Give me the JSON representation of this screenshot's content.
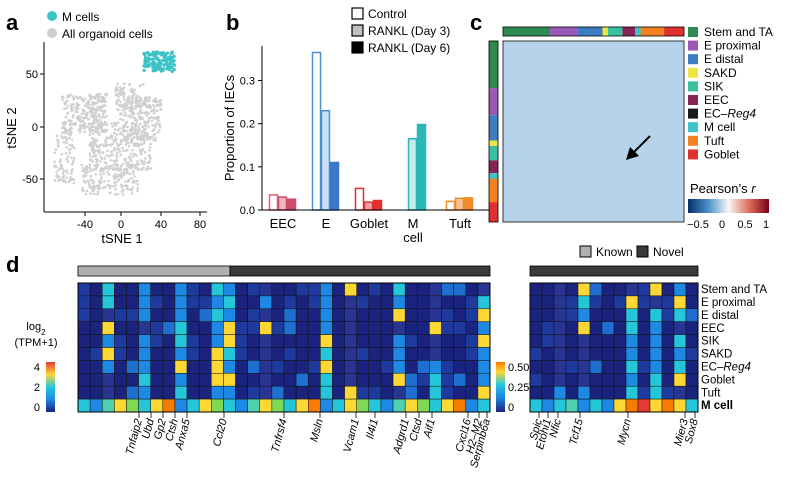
{
  "panels": {
    "a": {
      "letter": "a",
      "legend": [
        "M cells",
        "All organoid cells"
      ],
      "legend_colors": [
        "#3ec3c7",
        "#d0d0d0"
      ],
      "xlabel": "tSNE 1",
      "ylabel": "tSNE 2",
      "xticks": [
        "-40",
        "0",
        "40",
        "80"
      ],
      "yticks": [
        "50",
        "0",
        "-50"
      ]
    },
    "b": {
      "letter": "b",
      "legend": [
        "Control",
        "RANKL (Day 3)",
        "RANKL (Day 6)"
      ],
      "ylabel": "Proportion of IECs",
      "yticks": [
        "0.0",
        "0.1",
        "0.2",
        "0.3"
      ],
      "xticks": [
        "EEC",
        "E",
        "Goblet",
        "M\ncell",
        "Tuft"
      ]
    },
    "c": {
      "letter": "c",
      "legend": [
        "Stem and TA",
        "E proximal",
        "E distal",
        "SAKD",
        "SIK",
        "EEC",
        "EC–Reg4",
        "M cell",
        "Tuft",
        "Goblet"
      ],
      "legend_colors": [
        "#2e8b4f",
        "#9b59b6",
        "#3b7dc0",
        "#f0e442",
        "#38c0a0",
        "#8b2257",
        "#1a1a1a",
        "#3ec3c7",
        "#f08020",
        "#e03030"
      ],
      "colorbar_title": "Pearson’s r",
      "colorbar_ticks": [
        "−0.5",
        "0",
        "0.5",
        "1"
      ]
    },
    "d": {
      "letter": "d",
      "legend": [
        "Known",
        "Novel"
      ],
      "rows": [
        "Stem and TA",
        "E proximal",
        "E distal",
        "EEC",
        "SIK",
        "SAKD",
        "EC–Reg4",
        "Goblet",
        "Tuft",
        "M cell"
      ],
      "colorbar_left_title": "log₂\n(TPM+1)",
      "colorbar_left_ticks": [
        "4",
        "2",
        "0"
      ],
      "colorbar_right_ticks": [
        "0.50",
        "0.25",
        "0"
      ],
      "genes_left": [
        "Tnfaip2",
        "Ubd",
        "Gp2",
        "Ctsh",
        "Anxa5",
        "Ccl20",
        "Tnfrsf4",
        "Msln",
        "Vcam1",
        "Il4i1",
        "Adgrd1",
        "Ctsd",
        "Aif1",
        "Cxcl16",
        "H2–M2",
        "Serpinb6a"
      ],
      "genes_right": [
        "Spic",
        "Etohi1",
        "Nfic",
        "Tcf15",
        "Mycn",
        "Mier3",
        "Sox8"
      ]
    }
  },
  "chart_data": [
    {
      "type": "scatter",
      "title": "",
      "xlabel": "tSNE 1",
      "ylabel": "tSNE 2",
      "xlim": [
        -75,
        85
      ],
      "ylim": [
        -75,
        80
      ],
      "series": [
        {
          "name": "All organoid cells",
          "color": "#d0d0d0"
        },
        {
          "name": "M cells",
          "color": "#3ec3c7"
        }
      ]
    },
    {
      "type": "bar",
      "ylabel": "Proportion of IECs",
      "ylim": [
        0,
        0.38
      ],
      "categories": [
        "EEC",
        "E",
        "Goblet",
        "M cell",
        "Tuft"
      ],
      "series": [
        {
          "name": "Control",
          "values": [
            0.035,
            0.365,
            0.05,
            0.0,
            0.02
          ]
        },
        {
          "name": "RANKL (Day 3)",
          "values": [
            0.03,
            0.23,
            0.018,
            0.165,
            0.027
          ]
        },
        {
          "name": "RANKL (Day 6)",
          "values": [
            0.025,
            0.11,
            0.022,
            0.198,
            0.028
          ]
        }
      ]
    },
    {
      "type": "heatmap",
      "title": "",
      "colorbar": "Pearson’s r",
      "range": [
        -0.8,
        1
      ]
    },
    {
      "type": "heatmap",
      "rows": [
        "Stem and TA",
        "E proximal",
        "E distal",
        "EEC",
        "SIK",
        "SAKD",
        "EC–Reg4",
        "Goblet",
        "Tuft",
        "M cell"
      ],
      "left_range": [
        0,
        5
      ],
      "right_range": [
        0,
        0.5
      ]
    }
  ]
}
